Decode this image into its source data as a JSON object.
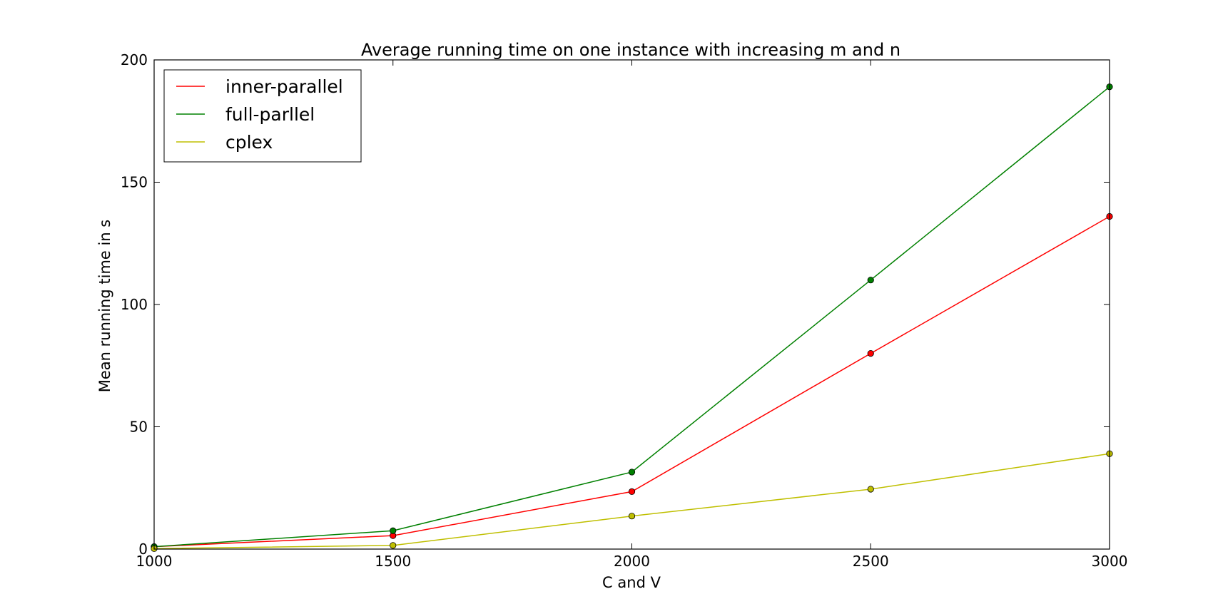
{
  "chart_data": {
    "type": "line",
    "title": "Average running time on one instance with increasing m and n",
    "xlabel": "C and V",
    "ylabel": "Mean running time in s",
    "x": [
      1000,
      1500,
      2000,
      2500,
      3000
    ],
    "xlim": [
      1000,
      3000
    ],
    "ylim": [
      0,
      200
    ],
    "xticks": [
      1000,
      1500,
      2000,
      2500,
      3000
    ],
    "yticks": [
      0,
      50,
      100,
      150,
      200
    ],
    "grid": false,
    "legend_position": "top-left",
    "series": [
      {
        "name": "inner-parallel",
        "color": "#ff0000",
        "values": [
          1,
          5.5,
          23.5,
          80,
          136
        ]
      },
      {
        "name": "full-parllel",
        "color": "#008000",
        "values": [
          1,
          7.5,
          31.5,
          110,
          189
        ]
      },
      {
        "name": "cplex",
        "color": "#bfbf00",
        "values": [
          0.2,
          1.5,
          13.5,
          24.5,
          39
        ]
      }
    ]
  }
}
